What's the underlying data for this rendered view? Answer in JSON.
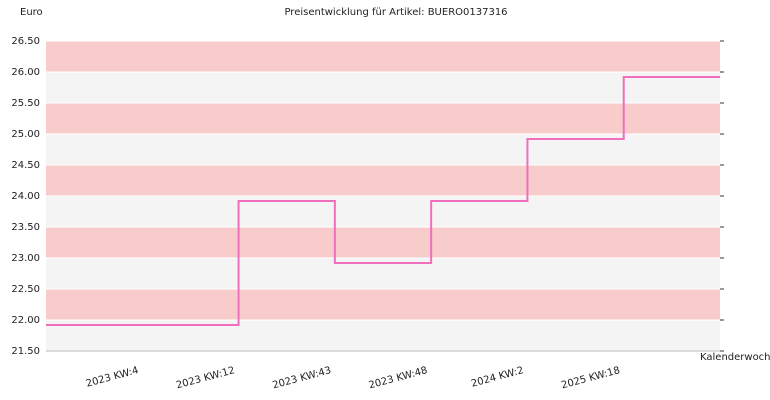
{
  "chart_data": {
    "type": "step",
    "title": "Preisentwicklung für Artikel: BUERO0137316",
    "y_label": "Euro",
    "x_label": "Kalenderwoche",
    "categories": [
      "2023 KW:4",
      "2023 KW:12",
      "2023 KW:43",
      "2023 KW:48",
      "2024 KW:2",
      "2025 KW:18"
    ],
    "values": [
      21.92,
      23.92,
      22.92,
      23.92,
      24.92,
      25.92
    ],
    "color": "#f06fbd",
    "band_colors": [
      "#f9cccc",
      "#f4f4f4"
    ],
    "ylim": [
      21.5,
      26.5
    ],
    "yticks": [
      {
        "value": 21.5,
        "label": "21.50"
      },
      {
        "value": 22,
        "label": "22.00"
      },
      {
        "value": 22.5,
        "label": "22.50"
      },
      {
        "value": 23,
        "label": "23.00"
      },
      {
        "value": 23.5,
        "label": "23.50"
      },
      {
        "value": 24,
        "label": "24.00"
      },
      {
        "value": 24.5,
        "label": "24.50"
      },
      {
        "value": 25,
        "label": "25.00"
      },
      {
        "value": 25.5,
        "label": "25.50"
      },
      {
        "value": 26,
        "label": "26.00"
      },
      {
        "value": 26.5,
        "label": "26.50"
      }
    ],
    "grid": true
  }
}
